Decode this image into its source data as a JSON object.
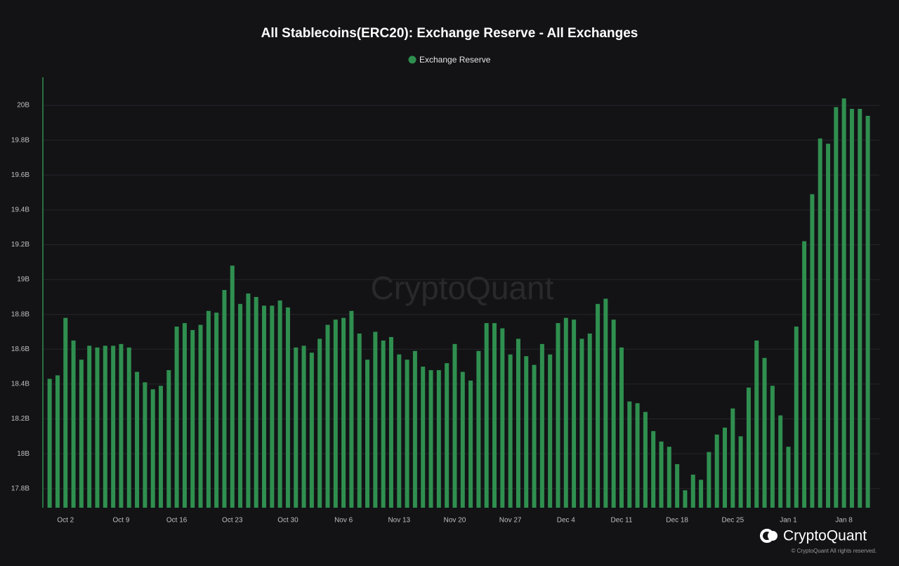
{
  "chart_data": {
    "type": "bar",
    "title": "All Stablecoins(ERC20): Exchange Reserve - All Exchanges",
    "watermark": "CryptoQuant",
    "brand": "CryptoQuant",
    "copyright": "© CryptoQuant All rights reserved.",
    "categories": [
      null,
      null,
      "Oct 2",
      null,
      null,
      null,
      null,
      null,
      null,
      "Oct 9",
      null,
      null,
      null,
      null,
      null,
      null,
      "Oct 16",
      null,
      null,
      null,
      null,
      null,
      null,
      "Oct 23",
      null,
      null,
      null,
      null,
      null,
      null,
      "Oct 30",
      null,
      null,
      null,
      null,
      null,
      null,
      "Nov 6",
      null,
      null,
      null,
      null,
      null,
      null,
      "Nov 13",
      null,
      null,
      null,
      null,
      null,
      null,
      "Nov 20",
      null,
      null,
      null,
      null,
      null,
      null,
      "Nov 27",
      null,
      null,
      null,
      null,
      null,
      null,
      "Dec 4",
      null,
      null,
      null,
      null,
      null,
      null,
      "Dec 11",
      null,
      null,
      null,
      null,
      null,
      null,
      "Dec 18",
      null,
      null,
      null,
      null,
      null,
      null,
      "Dec 25",
      null,
      null,
      null,
      null,
      null,
      null,
      "Jan 1",
      null,
      null,
      null,
      null,
      null,
      null,
      "Jan 8",
      null,
      null,
      null
    ],
    "series": [
      {
        "name": "Exchange Reserve",
        "color": "#2f8f4f",
        "values": [
          18.43,
          18.45,
          18.78,
          18.65,
          18.54,
          18.62,
          18.61,
          18.62,
          18.62,
          18.63,
          18.61,
          18.47,
          18.41,
          18.37,
          18.39,
          18.48,
          18.73,
          18.75,
          18.71,
          18.74,
          18.82,
          18.81,
          18.94,
          19.08,
          18.86,
          18.92,
          18.9,
          18.85,
          18.85,
          18.88,
          18.84,
          18.61,
          18.62,
          18.58,
          18.66,
          18.74,
          18.77,
          18.78,
          18.82,
          18.69,
          18.54,
          18.7,
          18.65,
          18.67,
          18.57,
          18.54,
          18.59,
          18.5,
          18.48,
          18.48,
          18.52,
          18.63,
          18.47,
          18.42,
          18.59,
          18.75,
          18.75,
          18.72,
          18.57,
          18.66,
          18.56,
          18.51,
          18.63,
          18.57,
          18.75,
          18.78,
          18.77,
          18.66,
          18.69,
          18.86,
          18.89,
          18.77,
          18.61,
          18.3,
          18.29,
          18.24,
          18.13,
          18.07,
          18.04,
          17.94,
          17.79,
          17.88,
          17.85,
          18.01,
          18.11,
          18.15,
          18.26,
          18.1,
          18.38,
          18.65,
          18.55,
          18.39,
          18.22,
          18.04,
          18.73,
          19.22,
          19.49,
          19.81,
          19.78,
          19.99,
          20.04,
          19.98,
          19.98,
          19.94
        ]
      }
    ],
    "ylim": [
      17.69,
      20.16
    ],
    "yticks": [
      {
        "value": 17.8,
        "label": "17.8B"
      },
      {
        "value": 18,
        "label": "18B"
      },
      {
        "value": 18.2,
        "label": "18.2B"
      },
      {
        "value": 18.4,
        "label": "18.4B"
      },
      {
        "value": 18.6,
        "label": "18.6B"
      },
      {
        "value": 18.8,
        "label": "18.8B"
      },
      {
        "value": 19,
        "label": "19B"
      },
      {
        "value": 19.2,
        "label": "19.2B"
      },
      {
        "value": 19.4,
        "label": "19.4B"
      },
      {
        "value": 19.6,
        "label": "19.6B"
      },
      {
        "value": 19.8,
        "label": "19.8B"
      },
      {
        "value": 20,
        "label": "20B"
      }
    ],
    "grid": true,
    "legend": "top"
  }
}
